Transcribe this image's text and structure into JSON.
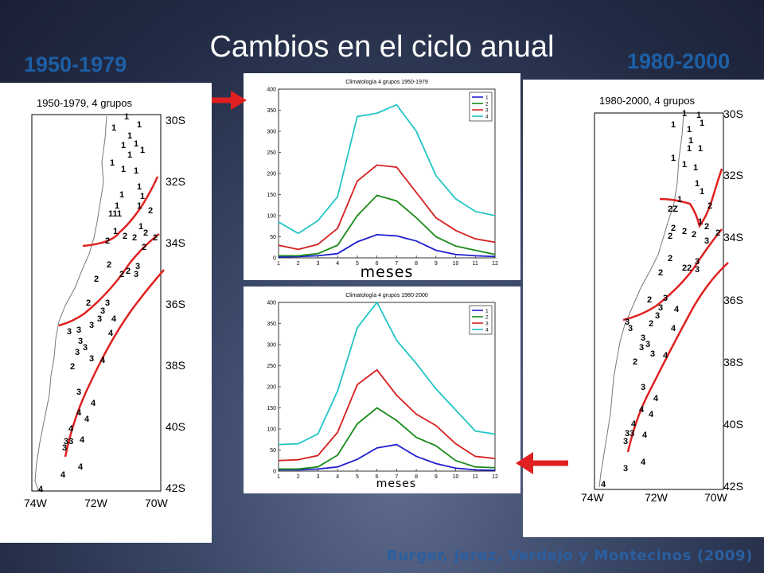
{
  "slide": {
    "title": "Cambios en el ciclo anual",
    "period_left": "1950-1979",
    "period_right": "1980-2000",
    "citation": "Burger, Jerez, Verdejo y Montecinos (2009)"
  },
  "maps": [
    {
      "title": "1950-1979, 4 grupos",
      "lat_labels": [
        "30S",
        "32S",
        "34S",
        "36S",
        "38S",
        "40S",
        "42S"
      ],
      "lon_labels": [
        "74W",
        "72W",
        "70W"
      ],
      "colors": {
        "boundary": "#e02020",
        "coast": "#666666"
      }
    },
    {
      "title": "1980-2000, 4 grupos",
      "lat_labels": [
        "30S",
        "32S",
        "34S",
        "36S",
        "38S",
        "40S",
        "42S"
      ],
      "lon_labels": [
        "74W",
        "72W",
        "70W"
      ],
      "colors": {
        "boundary": "#e02020",
        "coast": "#666666"
      }
    }
  ],
  "arrows": {
    "color": "#e02020"
  },
  "chart_data": [
    {
      "type": "line",
      "title": "Climatología 4 grupos 1950-1979",
      "xlabel": "meses",
      "x": [
        1,
        2,
        3,
        4,
        5,
        6,
        7,
        8,
        9,
        10,
        11,
        12
      ],
      "xlim": [
        1,
        12
      ],
      "ylim": [
        0,
        400
      ],
      "yticks": [
        0,
        50,
        100,
        150,
        200,
        250,
        300,
        350,
        400
      ],
      "grid": false,
      "legend": "top-right",
      "series": [
        {
          "name": "1",
          "color": "#1f1fd0",
          "values": [
            2,
            3,
            5,
            10,
            38,
            55,
            52,
            40,
            18,
            8,
            5,
            3
          ]
        },
        {
          "name": "2",
          "color": "#1a8a1a",
          "values": [
            5,
            5,
            10,
            30,
            100,
            148,
            135,
            95,
            50,
            28,
            18,
            8
          ]
        },
        {
          "name": "3",
          "color": "#d62020",
          "values": [
            30,
            20,
            32,
            70,
            182,
            220,
            215,
            155,
            95,
            65,
            45,
            37
          ]
        },
        {
          "name": "4",
          "color": "#22c5c5",
          "values": [
            85,
            58,
            88,
            145,
            335,
            343,
            363,
            300,
            195,
            140,
            110,
            100
          ]
        }
      ]
    },
    {
      "type": "line",
      "title": "Climatología 4 grupos 1980-2000",
      "xlabel": "meses",
      "x": [
        1,
        2,
        3,
        4,
        5,
        6,
        7,
        8,
        9,
        10,
        11,
        12
      ],
      "xlim": [
        1,
        12
      ],
      "ylim": [
        0,
        400
      ],
      "yticks": [
        0,
        50,
        100,
        150,
        200,
        250,
        300,
        350,
        400
      ],
      "grid": false,
      "legend": "top-right",
      "series": [
        {
          "name": "1",
          "color": "#1f1fd0",
          "values": [
            3,
            3,
            5,
            10,
            28,
            55,
            63,
            35,
            18,
            7,
            3,
            2
          ]
        },
        {
          "name": "2",
          "color": "#1a8a1a",
          "values": [
            5,
            5,
            10,
            38,
            112,
            150,
            120,
            80,
            60,
            25,
            10,
            8
          ]
        },
        {
          "name": "3",
          "color": "#d62020",
          "values": [
            25,
            27,
            37,
            92,
            205,
            240,
            180,
            135,
            108,
            65,
            35,
            30
          ]
        },
        {
          "name": "4",
          "color": "#22c5c5",
          "values": [
            63,
            65,
            88,
            190,
            340,
            400,
            310,
            255,
            195,
            145,
            95,
            88
          ]
        }
      ]
    }
  ]
}
